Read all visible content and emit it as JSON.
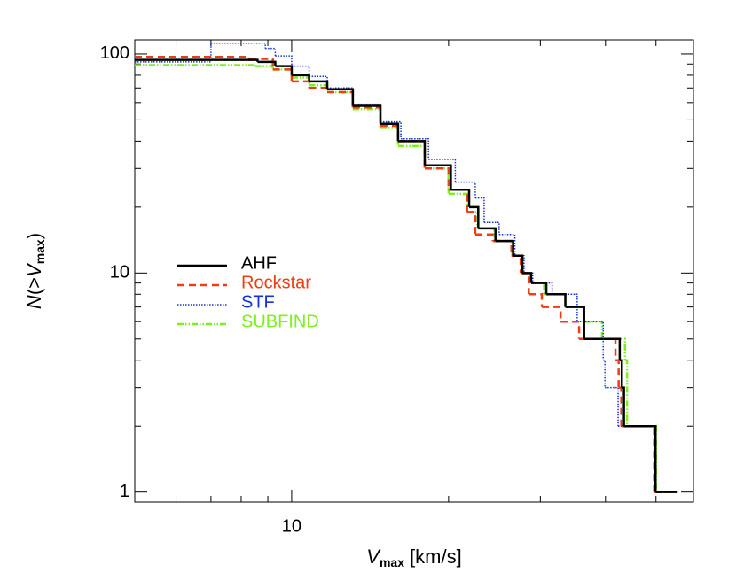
{
  "chart_data": {
    "type": "step",
    "x_label": {
      "main": "V",
      "sub": "max",
      "unit": "[km/s]"
    },
    "y_label": {
      "main": "N",
      "open": "(>",
      "var": "V",
      "sub": "max",
      "close": ")"
    },
    "xlim": [
      5,
      59
    ],
    "ylim": [
      0.9,
      116
    ],
    "xticks": [
      10
    ],
    "yticks": [
      1,
      10,
      100
    ],
    "xminor": [
      6,
      7,
      8,
      9,
      20,
      30,
      40,
      50
    ],
    "yminor": [
      2,
      3,
      4,
      5,
      6,
      7,
      8,
      9,
      20,
      30,
      40,
      50,
      60,
      70,
      80,
      90
    ],
    "xscale": "log",
    "yscale": "log",
    "series": [
      {
        "name": "SUBFIND",
        "color": "#7cf01c",
        "dash": "dashdotdot",
        "x": [
          5,
          8.5,
          9.2,
          10,
          10.8,
          11.7,
          13.1,
          14.8,
          16,
          18,
          20,
          21.7,
          22.7,
          24.5,
          26.5,
          27.6,
          28.8,
          30.5,
          33.5,
          36.4,
          39.4,
          43.6,
          44.0,
          50.0,
          55.2
        ],
        "values": [
          89,
          88,
          85,
          78,
          72,
          67,
          56,
          46,
          38,
          30,
          23,
          19,
          16,
          14,
          12,
          10,
          9,
          8,
          7,
          6,
          5,
          4,
          2,
          1,
          1
        ]
      },
      {
        "name": "STF",
        "color": "#1432d8",
        "dash": "dotted",
        "x": [
          5,
          7.0,
          8.9,
          9.3,
          10,
          10.8,
          11.7,
          13.1,
          14.8,
          16.2,
          18.3,
          20.6,
          22.5,
          23.4,
          25,
          26.8,
          27.9,
          29,
          31.6,
          35.3,
          39.6,
          39.9,
          42.3,
          49.8,
          55
        ],
        "values": [
          92,
          112,
          106,
          98,
          88,
          79,
          70,
          59,
          49,
          41,
          33,
          26,
          22,
          17,
          15,
          12,
          10,
          9,
          8,
          6,
          4,
          3,
          2,
          1,
          1
        ]
      },
      {
        "name": "Rockstar",
        "color": "#f03c14",
        "dash": "dashed",
        "x": [
          5,
          8.3,
          9.2,
          10,
          10.8,
          11.7,
          13.1,
          14.8,
          16,
          18,
          20,
          21.7,
          22.5,
          24.3,
          26.4,
          27.5,
          28.5,
          30.2,
          32.8,
          35.6,
          41.8,
          42.4,
          42.9,
          49.6,
          55
        ],
        "values": [
          97,
          95,
          85,
          75,
          70,
          67,
          57,
          47,
          40,
          30,
          24,
          19,
          15,
          14,
          12,
          10,
          8,
          7,
          6,
          5,
          4,
          3,
          2,
          1,
          1
        ]
      },
      {
        "name": "AHF",
        "color": "#000000",
        "dash": "solid",
        "x": [
          5,
          8.6,
          9.3,
          10,
          10.8,
          11.7,
          13.1,
          14.8,
          16,
          18,
          20.2,
          21.9,
          22.8,
          24.6,
          26.6,
          27.7,
          28.8,
          30.8,
          33.5,
          36.4,
          42.6,
          43.0,
          43.4,
          49.9,
          55
        ],
        "values": [
          94,
          92,
          88,
          80,
          75,
          69,
          58,
          48,
          40,
          31,
          24,
          20,
          16,
          14,
          12,
          10,
          9,
          8,
          7,
          5,
          4,
          3,
          2,
          1,
          1
        ]
      }
    ],
    "legend_order": [
      3,
      2,
      1,
      0
    ]
  }
}
